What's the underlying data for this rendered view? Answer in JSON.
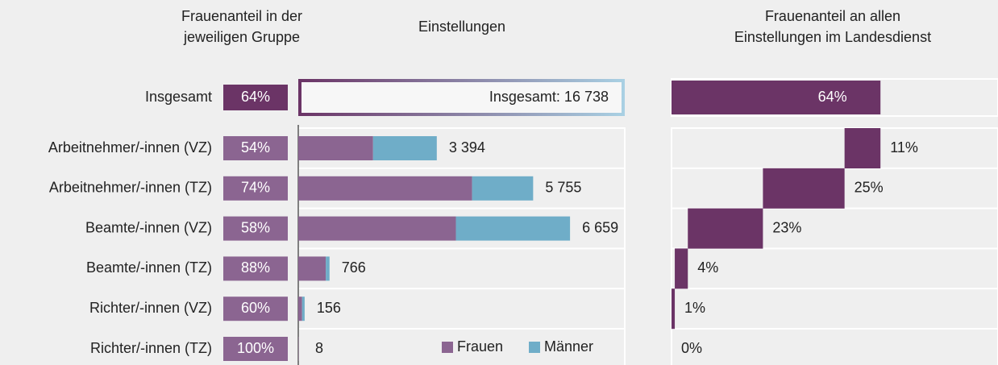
{
  "chart_data": {
    "type": "bar",
    "share_title": [
      "Frauenanteil in der",
      "jeweiligen Gruppe"
    ],
    "hires_title": [
      "Einstellungen"
    ],
    "portion_title": [
      "Frauenanteil an allen",
      "Einstellungen im Landesdienst"
    ],
    "total": {
      "label": "Insgesamt",
      "share": 64,
      "share_label": "64%",
      "value_label": "Insgesamt: 16 738",
      "value": 16738,
      "portion": 64,
      "portion_label": "64%"
    },
    "categories": [
      "Arbeitnehmer/-innen (VZ)",
      "Arbeitnehmer/-innen (TZ)",
      "Beamte/-innen (VZ)",
      "Beamte/-innen (TZ)",
      "Richter/-innen (VZ)",
      "Richter/-innen (TZ)"
    ],
    "share": [
      54,
      74,
      58,
      88,
      60,
      100
    ],
    "share_labels": [
      "54%",
      "74%",
      "58%",
      "88%",
      "60%",
      "100%"
    ],
    "totals": [
      3394,
      5755,
      6659,
      766,
      156,
      8
    ],
    "total_labels": [
      "3 394",
      "5 755",
      "6 659",
      "766",
      "156",
      "8"
    ],
    "portion": [
      11,
      25,
      23,
      4,
      1,
      0
    ],
    "portion_labels": [
      "11%",
      "25%",
      "23%",
      "4%",
      "1%",
      "0%"
    ],
    "series": [
      {
        "name": "Frauen",
        "color": "#8b6591"
      },
      {
        "name": "Männer",
        "color": "#6fadc8"
      }
    ],
    "total_color": "#6b3466",
    "xlim": [
      0,
      8000
    ],
    "portion_xlim": [
      0,
      100
    ]
  }
}
